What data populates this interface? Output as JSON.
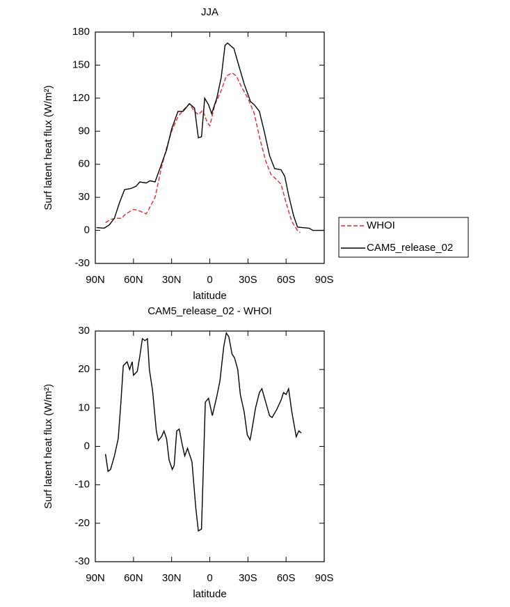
{
  "chart_data": [
    {
      "type": "line",
      "title": "JJA",
      "xlabel": "latitude",
      "ylabel": "Surf latent heat flux (W/m²)",
      "xlim": [
        90,
        -90
      ],
      "xticks": [
        {
          "value": 90,
          "label": "90N"
        },
        {
          "value": 60,
          "label": "60N"
        },
        {
          "value": 30,
          "label": "30N"
        },
        0,
        {
          "value": -30,
          "label": "30S"
        },
        {
          "value": -60,
          "label": "60S"
        },
        {
          "value": -90,
          "label": "90S"
        }
      ],
      "ylim": [
        -30,
        180
      ],
      "yticks": [
        -30,
        0,
        30,
        60,
        90,
        120,
        150,
        180
      ],
      "legend": "right",
      "series": [
        {
          "name": "WHOI",
          "color": "#e8262b",
          "dash": true,
          "x": [
            82,
            78,
            73,
            69,
            67,
            63,
            60,
            56,
            50,
            48,
            43,
            38,
            34,
            30,
            25,
            21,
            16,
            12,
            9,
            5.5,
            2,
            0,
            -4,
            -9,
            -13,
            -17.5,
            -21,
            -25,
            -30,
            -35,
            -39,
            -44,
            -48,
            -52.5,
            -56,
            -60,
            -64.5,
            -69,
            -71
          ],
          "values": [
            7,
            10,
            11,
            11,
            14,
            17,
            19,
            18,
            15,
            19,
            30,
            57,
            75,
            90,
            103,
            109,
            115,
            108,
            105,
            109,
            98,
            95,
            114,
            127,
            140,
            143,
            140,
            130,
            120,
            106,
            85,
            63,
            51,
            46,
            42,
            25,
            8,
            0,
            -2
          ]
        },
        {
          "name": "CAM5_release_02",
          "color": "#000000",
          "dash": false,
          "x": [
            89,
            83,
            79,
            75,
            71,
            67,
            62,
            58,
            55,
            50,
            47,
            43,
            38,
            34,
            30,
            25,
            21,
            16,
            12,
            9,
            6.5,
            4,
            1,
            -1.5,
            -5.5,
            -9,
            -12,
            -14,
            -19,
            -23,
            -27,
            -32,
            -35,
            -39,
            -43,
            -47,
            -51,
            -56,
            -59,
            -62,
            -66,
            -69,
            -73,
            -78,
            -81,
            -90
          ],
          "values": [
            2.5,
            2,
            5,
            11,
            25,
            37,
            38,
            40,
            44,
            43,
            45,
            44,
            60,
            73,
            92,
            108,
            108,
            115,
            111,
            84,
            85,
            120,
            114,
            106,
            120,
            139,
            168,
            170,
            165,
            149,
            133,
            117,
            114,
            108,
            89,
            68,
            56,
            55,
            49,
            32,
            13,
            3,
            2.5,
            2,
            0,
            0
          ]
        }
      ]
    },
    {
      "type": "line",
      "title": "CAM5_release_02 - WHOI",
      "xlabel": "latitude",
      "ylabel": "Surf latent heat flux (W/m²)",
      "xlim": [
        90,
        -90
      ],
      "xticks": [
        {
          "value": 90,
          "label": "90N"
        },
        {
          "value": 60,
          "label": "60N"
        },
        {
          "value": 30,
          "label": "30N"
        },
        0,
        {
          "value": -30,
          "label": "30S"
        },
        {
          "value": -60,
          "label": "60S"
        },
        {
          "value": -90,
          "label": "90S"
        }
      ],
      "ylim": [
        -30,
        30
      ],
      "yticks": [
        -30,
        -20,
        -10,
        0,
        10,
        20,
        30
      ],
      "series": [
        {
          "color": "#000000",
          "dash": false,
          "x": [
            82,
            80,
            78,
            75,
            72,
            70,
            68,
            65,
            63,
            61,
            60,
            57,
            55,
            53,
            51,
            49,
            47.5,
            45,
            42,
            40.5,
            38,
            36,
            34,
            32,
            29.5,
            28,
            26,
            24,
            22,
            19.7,
            17.5,
            14,
            11,
            9,
            6.5,
            3.5,
            1,
            -2,
            -5.5,
            -8,
            -11,
            -13,
            -15,
            -17.5,
            -19.5,
            -22,
            -24,
            -27,
            -29.5,
            -31.7,
            -33,
            -36,
            -39,
            -41,
            -44,
            -47,
            -49,
            -52.5,
            -56,
            -58,
            -60,
            -62,
            -64.5,
            -68,
            -70,
            -72
          ],
          "values": [
            -2,
            -6.5,
            -6,
            -2.5,
            2,
            11,
            21,
            22,
            20,
            22,
            18.5,
            19.5,
            23.5,
            28,
            27.5,
            28,
            20,
            14.5,
            4,
            1.5,
            2.5,
            4,
            2,
            -3.5,
            -6,
            -5,
            4,
            4.5,
            1,
            -2.5,
            -0.5,
            -4,
            -16,
            -22,
            -21.5,
            11.5,
            12.5,
            8,
            13,
            17,
            26,
            29.5,
            28.5,
            24,
            23,
            20,
            13.5,
            9,
            3,
            1.7,
            4,
            10,
            14,
            15,
            11.5,
            8,
            7.5,
            9.5,
            12,
            14,
            13.5,
            15,
            9,
            2.5,
            4,
            3.5
          ]
        }
      ]
    }
  ]
}
